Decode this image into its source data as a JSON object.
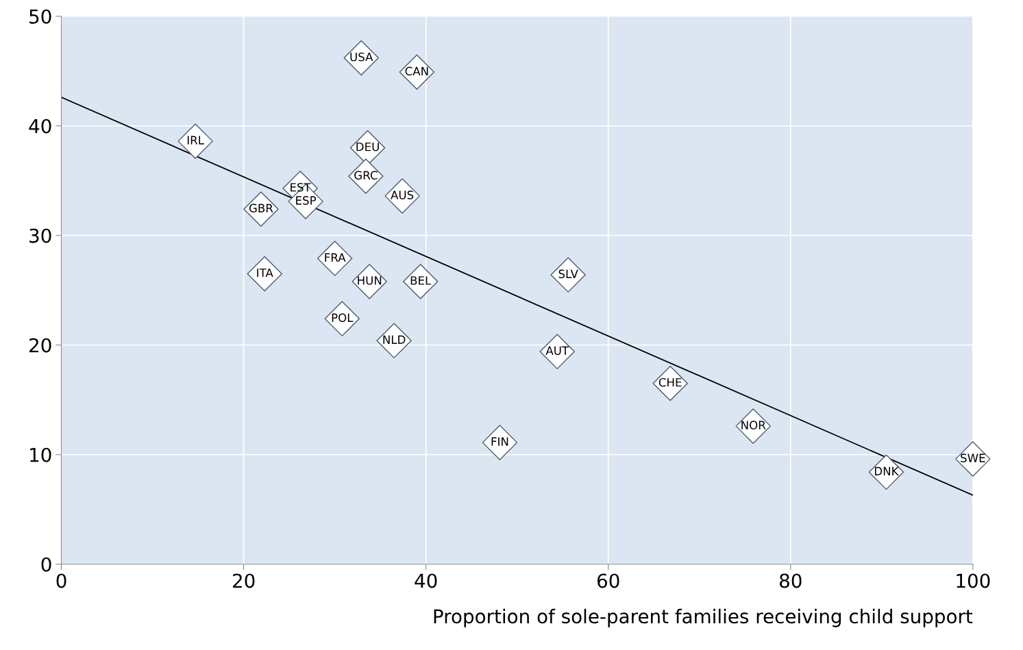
{
  "chart_data": {
    "type": "scatter",
    "xlabel": "Proportion of sole-parent families receiving child support",
    "xlim": [
      0,
      100
    ],
    "xticks": [
      0,
      20,
      40,
      60,
      80,
      100
    ],
    "ylim": [
      0,
      50
    ],
    "yticks": [
      0,
      10,
      20,
      30,
      40,
      50
    ],
    "grid": true,
    "legend": false,
    "series": [
      {
        "marker": "diamond",
        "color": "#ffffff",
        "x": [
          32.9,
          39.0,
          14.7,
          33.6,
          33.4,
          26.2,
          26.8,
          37.4,
          21.9,
          30.0,
          22.3,
          33.8,
          39.4,
          55.6,
          30.8,
          36.5,
          54.4,
          48.1,
          66.8,
          75.9,
          90.5,
          100
        ],
        "values": [
          46.2,
          44.9,
          38.6,
          38.0,
          35.4,
          34.3,
          33.1,
          33.6,
          32.4,
          27.9,
          26.5,
          25.8,
          25.8,
          26.4,
          22.4,
          20.4,
          19.4,
          11.1,
          16.5,
          12.6,
          8.4,
          9.6
        ]
      },
      {
        "type": "line",
        "color": "#000000",
        "x": [
          0,
          100
        ],
        "values": [
          42.6,
          6.3
        ]
      }
    ],
    "annotations": [
      {
        "text": "USA",
        "x": 32.9,
        "y": 46.2
      },
      {
        "text": "CAN",
        "x": 39.0,
        "y": 44.9
      },
      {
        "text": "IRL",
        "x": 14.7,
        "y": 38.6
      },
      {
        "text": "DEU",
        "x": 33.6,
        "y": 38.0
      },
      {
        "text": "GRC",
        "x": 33.4,
        "y": 35.4
      },
      {
        "text": "EST",
        "x": 26.2,
        "y": 34.3
      },
      {
        "text": "ESP",
        "x": 26.8,
        "y": 33.1
      },
      {
        "text": "AUS",
        "x": 37.4,
        "y": 33.6
      },
      {
        "text": "GBR",
        "x": 21.9,
        "y": 32.4
      },
      {
        "text": "FRA",
        "x": 30.0,
        "y": 27.9
      },
      {
        "text": "ITA",
        "x": 22.3,
        "y": 26.5
      },
      {
        "text": "HUN",
        "x": 33.8,
        "y": 25.8
      },
      {
        "text": "BEL",
        "x": 39.4,
        "y": 25.8
      },
      {
        "text": "SLV",
        "x": 55.6,
        "y": 26.4
      },
      {
        "text": "POL",
        "x": 30.8,
        "y": 22.4
      },
      {
        "text": "NLD",
        "x": 36.5,
        "y": 20.4
      },
      {
        "text": "AUT",
        "x": 54.4,
        "y": 19.4
      },
      {
        "text": "FIN",
        "x": 48.1,
        "y": 11.1
      },
      {
        "text": "CHE",
        "x": 66.8,
        "y": 16.5
      },
      {
        "text": "NOR",
        "x": 75.9,
        "y": 12.6
      },
      {
        "text": "DNK",
        "x": 90.5,
        "y": 8.4
      },
      {
        "text": "SWE",
        "x": 100,
        "y": 9.6
      }
    ]
  }
}
